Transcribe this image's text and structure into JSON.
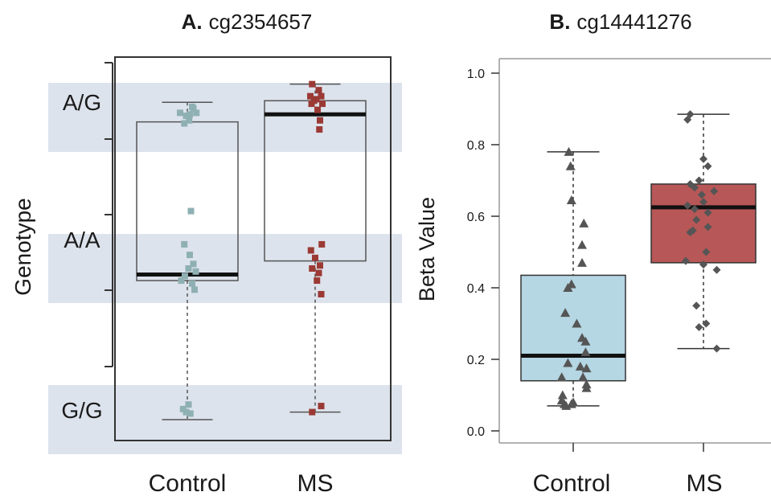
{
  "chart_data": [
    {
      "type": "box",
      "title_letter": "A.",
      "title": "cg2354657",
      "ylabel": "Genotype",
      "genotype_levels": [
        "G/G",
        "A/A",
        "A/G"
      ],
      "categories": [
        "Control",
        "MS"
      ],
      "colors": {
        "Control": "#8fb0b3",
        "MS": "#9b3a35",
        "band": "#dde3ec"
      },
      "boxes": [
        {
          "group": "Control",
          "whisker_low": 0.0,
          "q1": 0.92,
          "median": 0.96,
          "q3": 1.97,
          "whisker_high": 2.1
        },
        {
          "group": "MS",
          "whisker_low": 0.05,
          "q1": 1.05,
          "median": 2.02,
          "q3": 2.11,
          "whisker_high": 2.22
        }
      ],
      "points": {
        "Control": [
          [
            -0.05,
            1.96
          ],
          [
            0.03,
            1.98
          ],
          [
            -0.12,
            2.03
          ],
          [
            0.08,
            2.07
          ],
          [
            0.15,
            2.03
          ],
          [
            -0.02,
            2.01
          ],
          [
            0.1,
            2.06
          ],
          [
            0.04,
            2.02
          ],
          [
            0.06,
            1.38
          ],
          [
            -0.05,
            1.16
          ],
          [
            0.04,
            1.09
          ],
          [
            0.1,
            1.03
          ],
          [
            0.14,
            0.98
          ],
          [
            -0.1,
            0.92
          ],
          [
            0.08,
            0.9
          ],
          [
            -0.04,
            0.95
          ],
          [
            0.12,
            0.86
          ],
          [
            0.02,
            1.0
          ],
          [
            -0.07,
            0.07
          ],
          [
            0.02,
            0.1
          ],
          [
            -0.02,
            0.05
          ],
          [
            0.05,
            0.04
          ]
        ],
        "MS": [
          [
            -0.05,
            2.22
          ],
          [
            0.06,
            2.18
          ],
          [
            -0.08,
            2.14
          ],
          [
            0.02,
            2.12
          ],
          [
            0.1,
            2.14
          ],
          [
            0.12,
            2.09
          ],
          [
            -0.06,
            2.09
          ],
          [
            0.04,
            2.05
          ],
          [
            0.08,
            1.98
          ],
          [
            0.07,
            1.92
          ],
          [
            -0.02,
            2.11
          ],
          [
            0.11,
            1.16
          ],
          [
            -0.07,
            1.12
          ],
          [
            0.0,
            1.07
          ],
          [
            0.08,
            1.02
          ],
          [
            -0.05,
            1.0
          ],
          [
            0.06,
            0.97
          ],
          [
            0.03,
            0.92
          ],
          [
            0.1,
            0.83
          ],
          [
            0.1,
            0.09
          ],
          [
            -0.05,
            0.05
          ]
        ]
      }
    },
    {
      "type": "box",
      "title_letter": "B.",
      "title": "cg14441276",
      "ylabel": "Beta Value",
      "xlabel": "",
      "ylim": [
        -0.02,
        1.03
      ],
      "yticks": [
        "0.0",
        "0.2",
        "0.4",
        "0.6",
        "0.8",
        "1.0"
      ],
      "categories": [
        "Control",
        "MS"
      ],
      "colors": {
        "Control": "#b5d6e3",
        "MS": "#b75757",
        "points": "#555555"
      },
      "boxes": [
        {
          "group": "Control",
          "whisker_low": 0.07,
          "q1": 0.14,
          "median": 0.21,
          "q3": 0.435,
          "whisker_high": 0.78
        },
        {
          "group": "MS",
          "whisker_low": 0.23,
          "q1": 0.47,
          "median": 0.625,
          "q3": 0.69,
          "whisker_high": 0.885
        }
      ],
      "points": {
        "Control": [
          [
            -0.05,
            0.78
          ],
          [
            -0.03,
            0.74
          ],
          [
            -0.02,
            0.645
          ],
          [
            0.12,
            0.58
          ],
          [
            0.1,
            0.52
          ],
          [
            0.1,
            0.47
          ],
          [
            -0.02,
            0.41
          ],
          [
            -0.06,
            0.4
          ],
          [
            -0.09,
            0.33
          ],
          [
            0.04,
            0.3
          ],
          [
            0.1,
            0.26
          ],
          [
            0.14,
            0.25
          ],
          [
            0.14,
            0.22
          ],
          [
            -0.06,
            0.19
          ],
          [
            0.08,
            0.18
          ],
          [
            0.15,
            0.175
          ],
          [
            0.11,
            0.15
          ],
          [
            -0.13,
            0.15
          ],
          [
            0.15,
            0.13
          ],
          [
            0.15,
            0.12
          ],
          [
            -0.12,
            0.1
          ],
          [
            -0.13,
            0.085
          ],
          [
            -0.1,
            0.075
          ],
          [
            -0.08,
            0.07
          ],
          [
            -0.02,
            0.075
          ],
          [
            0.0,
            0.08
          ]
        ],
        "MS": [
          [
            -0.18,
            0.87
          ],
          [
            -0.15,
            0.885
          ],
          [
            0.0,
            0.76
          ],
          [
            0.05,
            0.74
          ],
          [
            -0.05,
            0.7
          ],
          [
            -0.15,
            0.69
          ],
          [
            -0.1,
            0.68
          ],
          [
            -0.02,
            0.66
          ],
          [
            0.12,
            0.67
          ],
          [
            -0.18,
            0.63
          ],
          [
            -0.1,
            0.62
          ],
          [
            0.0,
            0.64
          ],
          [
            0.05,
            0.61
          ],
          [
            -0.08,
            0.59
          ],
          [
            -0.12,
            0.56
          ],
          [
            -0.15,
            0.555
          ],
          [
            0.05,
            0.57
          ],
          [
            0.03,
            0.5
          ],
          [
            -0.2,
            0.475
          ],
          [
            0.0,
            0.465
          ],
          [
            0.15,
            0.45
          ],
          [
            -0.08,
            0.35
          ],
          [
            -0.05,
            0.29
          ],
          [
            0.03,
            0.3
          ],
          [
            0.15,
            0.23
          ]
        ]
      }
    }
  ]
}
